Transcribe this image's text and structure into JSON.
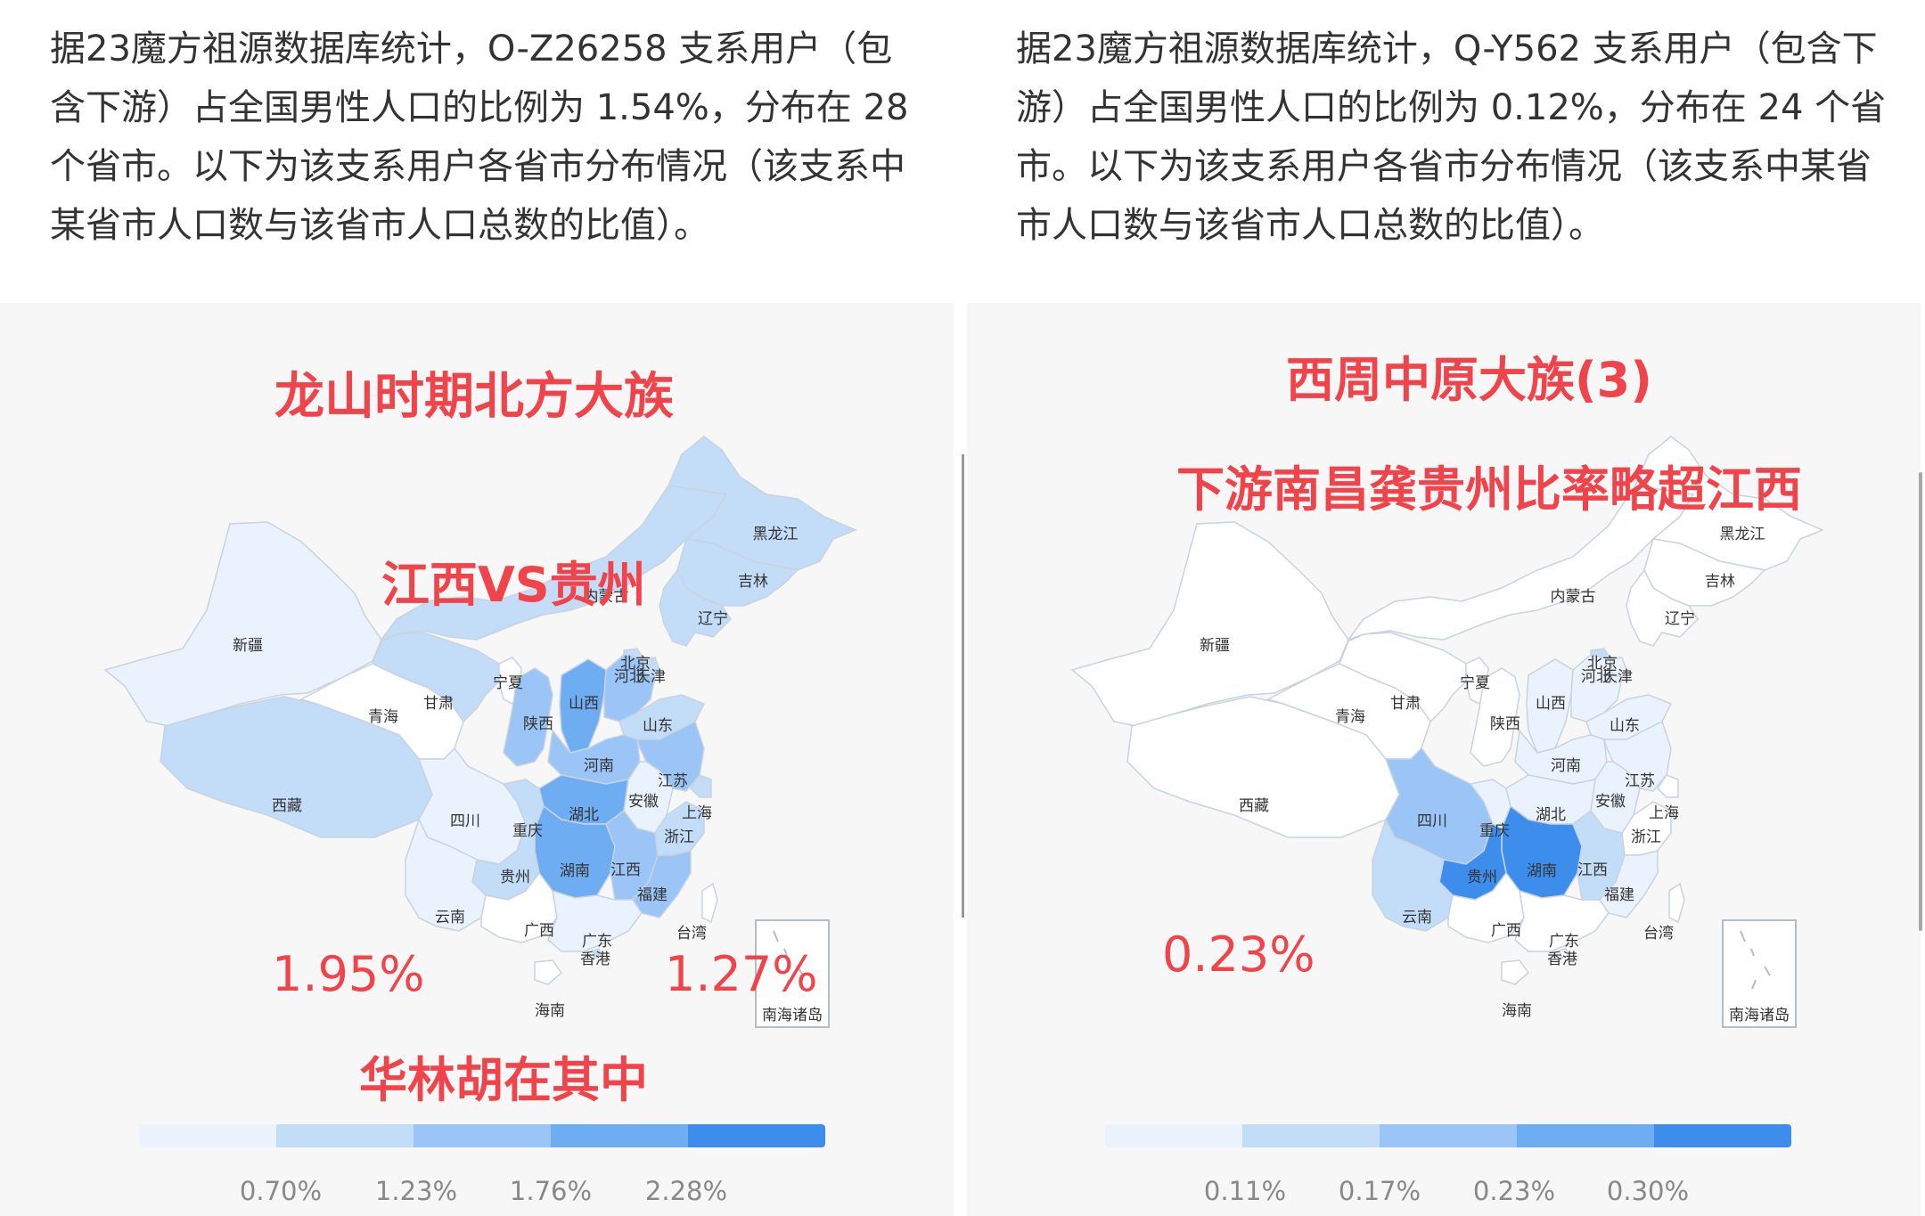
{
  "left": {
    "description": "据23魔方祖源数据库统计，O-Z26258 支系用户（包含下游）占全国男性人口的比例为 1.54%，分布在 28 个省市。以下为该支系用户各省市分布情况（该支系中某省市人口数与该省市人口总数的比值）。",
    "title": "龙山时期北方大族",
    "subtitle": "江西VS贵州",
    "value_a": "1.95%",
    "value_b": "1.27%",
    "footer_note": "华林胡在其中",
    "legend": {
      "colors": [
        "#eaf3fd",
        "#c3dcf8",
        "#9ac5f6",
        "#6eadf2",
        "#3d8eec"
      ],
      "ticks": [
        "0.70%",
        "1.23%",
        "1.76%",
        "2.28%"
      ]
    },
    "inset_label": "南海诸岛",
    "provinces": [
      {
        "name": "新疆",
        "level": 1
      },
      {
        "name": "西藏",
        "level": 2
      },
      {
        "name": "青海",
        "level": 0
      },
      {
        "name": "甘肃",
        "level": 2
      },
      {
        "name": "内蒙古",
        "level": 2
      },
      {
        "name": "黑龙江",
        "level": 2
      },
      {
        "name": "吉林",
        "level": 2
      },
      {
        "name": "辽宁",
        "level": 2
      },
      {
        "name": "宁夏",
        "level": 0
      },
      {
        "name": "陕西",
        "level": 3
      },
      {
        "name": "山西",
        "level": 4
      },
      {
        "name": "北京",
        "level": 2
      },
      {
        "name": "河北",
        "level": 3
      },
      {
        "name": "天津",
        "level": 2
      },
      {
        "name": "山东",
        "level": 2
      },
      {
        "name": "河南",
        "level": 3
      },
      {
        "name": "江苏",
        "level": 3
      },
      {
        "name": "安徽",
        "level": 1
      },
      {
        "name": "上海",
        "level": 2
      },
      {
        "name": "四川",
        "level": 1
      },
      {
        "name": "重庆",
        "level": 2
      },
      {
        "name": "湖北",
        "level": 4
      },
      {
        "name": "湖南",
        "level": 4
      },
      {
        "name": "江西",
        "level": 3
      },
      {
        "name": "浙江",
        "level": 2
      },
      {
        "name": "贵州",
        "level": 2
      },
      {
        "name": "福建",
        "level": 3
      },
      {
        "name": "云南",
        "level": 1
      },
      {
        "name": "广西",
        "level": 0
      },
      {
        "name": "广东",
        "level": 1
      },
      {
        "name": "香港",
        "level": 2
      },
      {
        "name": "台湾",
        "level": 0
      },
      {
        "name": "海南",
        "level": 0
      }
    ]
  },
  "right": {
    "description": "据23魔方祖源数据库统计，Q-Y562 支系用户（包含下游）占全国男性人口的比例为 0.12%，分布在 24 个省市。以下为该支系用户各省市分布情况（该支系中某省市人口数与该省市人口总数的比值）。",
    "title": "西周中原大族(3)",
    "subtitle": "下游南昌龚贵州比率略超江西",
    "value_a": "0.23%",
    "legend": {
      "colors": [
        "#eaf3fd",
        "#c3dcf8",
        "#9ac5f6",
        "#6eadf2",
        "#3d8eec"
      ],
      "ticks": [
        "0.11%",
        "0.17%",
        "0.23%",
        "0.30%"
      ]
    },
    "inset_label": "南海诸岛",
    "provinces": [
      {
        "name": "新疆",
        "level": 0
      },
      {
        "name": "西藏",
        "level": 0
      },
      {
        "name": "青海",
        "level": 0
      },
      {
        "name": "甘肃",
        "level": 0
      },
      {
        "name": "内蒙古",
        "level": 0
      },
      {
        "name": "黑龙江",
        "level": 0
      },
      {
        "name": "吉林",
        "level": 0
      },
      {
        "name": "辽宁",
        "level": 0
      },
      {
        "name": "宁夏",
        "level": 0
      },
      {
        "name": "陕西",
        "level": 0
      },
      {
        "name": "山西",
        "level": 1
      },
      {
        "name": "北京",
        "level": 2
      },
      {
        "name": "河北",
        "level": 1
      },
      {
        "name": "天津",
        "level": 1
      },
      {
        "name": "山东",
        "level": 1
      },
      {
        "name": "河南",
        "level": 1
      },
      {
        "name": "江苏",
        "level": 1
      },
      {
        "name": "安徽",
        "level": 1
      },
      {
        "name": "上海",
        "level": 0
      },
      {
        "name": "四川",
        "level": 3
      },
      {
        "name": "重庆",
        "level": 1
      },
      {
        "name": "湖北",
        "level": 1
      },
      {
        "name": "湖南",
        "level": 5
      },
      {
        "name": "江西",
        "level": 2
      },
      {
        "name": "浙江",
        "level": 0
      },
      {
        "name": "贵州",
        "level": 5
      },
      {
        "name": "福建",
        "level": 1
      },
      {
        "name": "云南",
        "level": 2
      },
      {
        "name": "广西",
        "level": 0
      },
      {
        "name": "广东",
        "level": 0
      },
      {
        "name": "香港",
        "level": 0
      },
      {
        "name": "台湾",
        "level": 0
      },
      {
        "name": "海南",
        "level": 0
      }
    ]
  }
}
